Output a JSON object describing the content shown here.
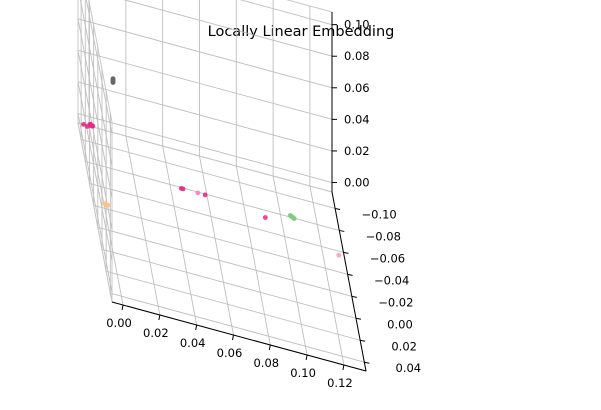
{
  "chart_data": {
    "type": "scatter",
    "title": "Locally Linear Embedding",
    "projection": "3d",
    "grid": true,
    "legend": "none",
    "axes": {
      "x": {
        "ticks": [
          "0.00",
          "0.02",
          "0.04",
          "0.06",
          "0.08",
          "0.10",
          "0.12"
        ],
        "lim": [
          -0.006,
          0.132
        ]
      },
      "y": {
        "ticks": [
          "−0.10",
          "−0.08",
          "−0.06",
          "−0.04",
          "−0.02",
          "0.00",
          "0.02",
          "0.04"
        ],
        "lim": [
          -0.115,
          0.048
        ]
      },
      "z": {
        "ticks": [
          "0.00",
          "0.02",
          "0.04",
          "0.06",
          "0.08",
          "0.10"
        ],
        "lim": [
          -0.006,
          0.108
        ]
      }
    },
    "clusters": [
      {
        "color": "#666666",
        "points": [
          [
            0.0,
            0.0,
            0.104
          ],
          [
            0.0,
            0.0,
            0.1035
          ],
          [
            0.0,
            0.0,
            0.103
          ],
          [
            0.0,
            0.0,
            0.1025
          ],
          [
            0.0,
            0.0,
            0.102
          ],
          [
            0.0,
            0.0,
            0.1015
          ]
        ]
      },
      {
        "color": "#fdc086",
        "points": [
          [
            0.0,
            -0.035,
            0.0
          ],
          [
            0.0005,
            -0.0345,
            0.0
          ],
          [
            -0.0005,
            -0.0355,
            0.0
          ],
          [
            0.001,
            -0.034,
            0.0005
          ]
        ]
      },
      {
        "color": "#e7298a",
        "points": [
          [
            0.0,
            -0.107,
            0.0
          ],
          [
            0.0005,
            -0.1065,
            0.0
          ],
          [
            0.001,
            -0.106,
            0.0005
          ],
          [
            -0.0005,
            -0.1075,
            0.0
          ],
          [
            0.0,
            -0.108,
            0.0
          ],
          [
            0.0008,
            -0.1068,
            0.0
          ],
          [
            -0.002,
            -0.105,
            0.0
          ],
          [
            -0.004,
            -0.106,
            0.0
          ]
        ]
      },
      {
        "color": "#e7298a",
        "points": [
          [
            0.045,
            -0.07,
            0.0
          ],
          [
            0.046,
            -0.07,
            0.0
          ]
        ]
      },
      {
        "color": "#e7298a",
        "points": [
          [
            0.058,
            -0.07,
            0.0
          ]
        ]
      },
      {
        "color": "#f781bf",
        "points": [
          [
            0.054,
            -0.07,
            0.0
          ]
        ]
      },
      {
        "color": "#f02d95",
        "points": [
          [
            0.09,
            -0.064,
            0.0
          ]
        ]
      },
      {
        "color": "#7fc97f",
        "points": [
          [
            0.105,
            -0.072,
            0.0
          ],
          [
            0.1055,
            -0.0715,
            0.0
          ],
          [
            0.106,
            -0.071,
            0.0
          ],
          [
            0.1045,
            -0.0725,
            0.0
          ],
          [
            0.1065,
            -0.0705,
            0.0
          ]
        ]
      },
      {
        "color": "#f7a1b8",
        "points": [
          [
            0.128,
            -0.047,
            0.0
          ]
        ]
      }
    ]
  }
}
